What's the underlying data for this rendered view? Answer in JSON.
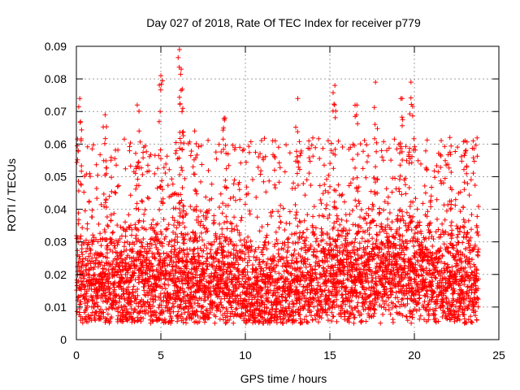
{
  "chart_data": {
    "type": "scatter",
    "title": "Day 027 of 2018, Rate Of TEC Index for receiver p779",
    "xlabel": "GPS time / hours",
    "ylabel": "ROTI / TECUs",
    "xlim": [
      0,
      25
    ],
    "ylim": [
      0,
      0.09
    ],
    "x_ticks": [
      0,
      5,
      10,
      15,
      20,
      25
    ],
    "x_tick_labels": [
      "0",
      "5",
      "10",
      "15",
      "20",
      "25"
    ],
    "y_ticks": [
      0,
      0.01,
      0.02,
      0.03,
      0.04,
      0.05,
      0.06,
      0.07,
      0.08,
      0.09
    ],
    "y_tick_labels": [
      "0",
      "0.01",
      "0.02",
      "0.03",
      "0.04",
      "0.05",
      "0.06",
      "0.07",
      "0.08",
      "0.09"
    ],
    "grid": true,
    "marker": "+",
    "series": [
      {
        "name": "ROTI",
        "color": "#ff0000",
        "x_range": [
          0,
          23.8
        ],
        "typical_range": [
          0.005,
          0.05
        ],
        "peaks": [
          {
            "x": 0.2,
            "y": 0.074
          },
          {
            "x": 1.7,
            "y": 0.069
          },
          {
            "x": 3.6,
            "y": 0.072
          },
          {
            "x": 5.0,
            "y": 0.081
          },
          {
            "x": 6.1,
            "y": 0.089
          },
          {
            "x": 6.2,
            "y": 0.083
          },
          {
            "x": 6.3,
            "y": 0.071
          },
          {
            "x": 7.0,
            "y": 0.064
          },
          {
            "x": 8.8,
            "y": 0.068
          },
          {
            "x": 13.1,
            "y": 0.074
          },
          {
            "x": 15.3,
            "y": 0.078
          },
          {
            "x": 16.6,
            "y": 0.072
          },
          {
            "x": 17.7,
            "y": 0.079
          },
          {
            "x": 19.2,
            "y": 0.074
          },
          {
            "x": 19.8,
            "y": 0.079
          },
          {
            "x": 22.1,
            "y": 0.062
          },
          {
            "x": 23.0,
            "y": 0.061
          }
        ]
      }
    ]
  }
}
